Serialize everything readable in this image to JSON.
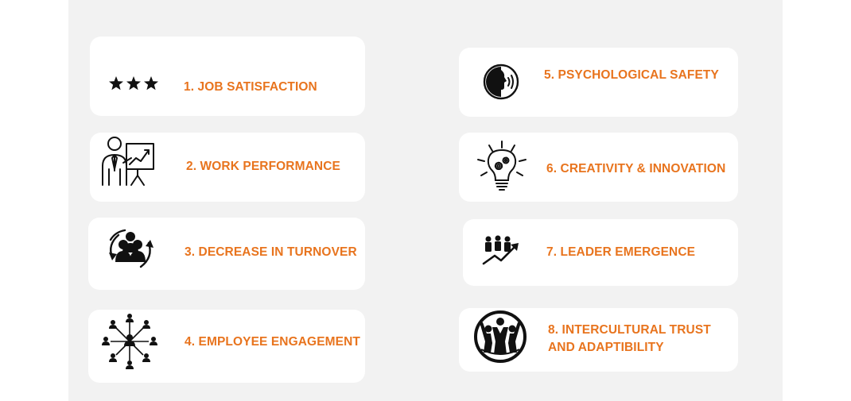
{
  "accent_color": "#e8741e",
  "cards": [
    {
      "icon": "three-stars-icon",
      "label": "1. JOB SATISFACTION"
    },
    {
      "icon": "presenter-chart-icon",
      "label": "2. WORK PERFORMANCE"
    },
    {
      "icon": "team-cycle-icon",
      "label": "3. DECREASE IN TURNOVER"
    },
    {
      "icon": "network-people-icon",
      "label": "4. EMPLOYEE ENGAGEMENT"
    },
    {
      "icon": "speaking-head-icon",
      "label": "5. PSYCHOLOGICAL SAFETY"
    },
    {
      "icon": "lightbulb-gears-icon",
      "label": "6. CREATIVITY & INNOVATION"
    },
    {
      "icon": "group-growth-arrow-icon",
      "label": "7. LEADER EMERGENCE"
    },
    {
      "icon": "people-circle-icon",
      "label_line1": "8. INTERCULTURAL TRUST",
      "label_line2": "AND ADAPTIBILITY"
    }
  ]
}
